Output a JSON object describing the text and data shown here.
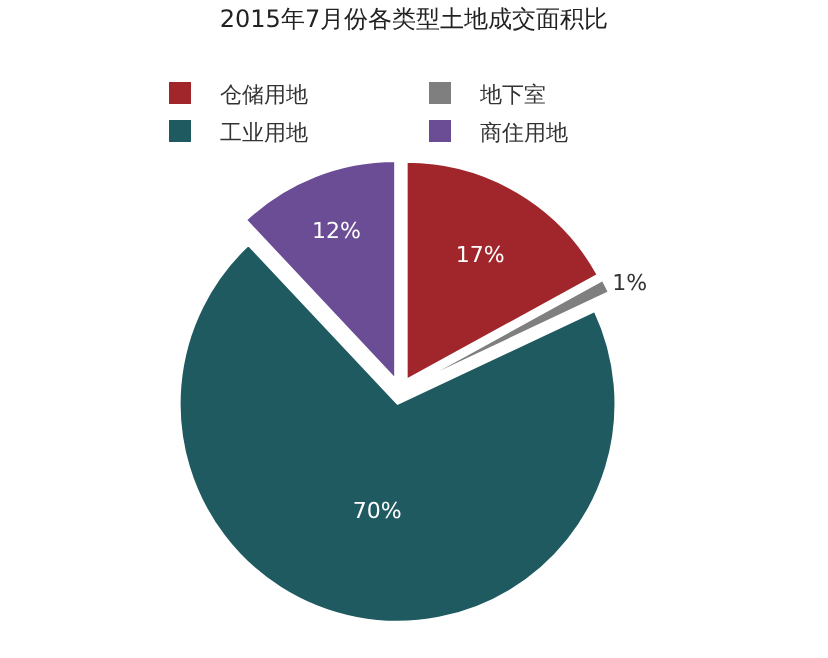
{
  "chart_data": {
    "type": "pie",
    "title": "2015年7月份各类型土地成交面积比",
    "categories": [
      "仓储用地",
      "地下室",
      "工业用地",
      "商住用地"
    ],
    "values": [
      17,
      1,
      70,
      12
    ],
    "colors": [
      "#a0262c",
      "#7f7f7f",
      "#1e5a60",
      "#6b4d96"
    ],
    "value_labels": [
      "17%",
      "1%",
      "70%",
      "12%"
    ],
    "legend": "top"
  }
}
